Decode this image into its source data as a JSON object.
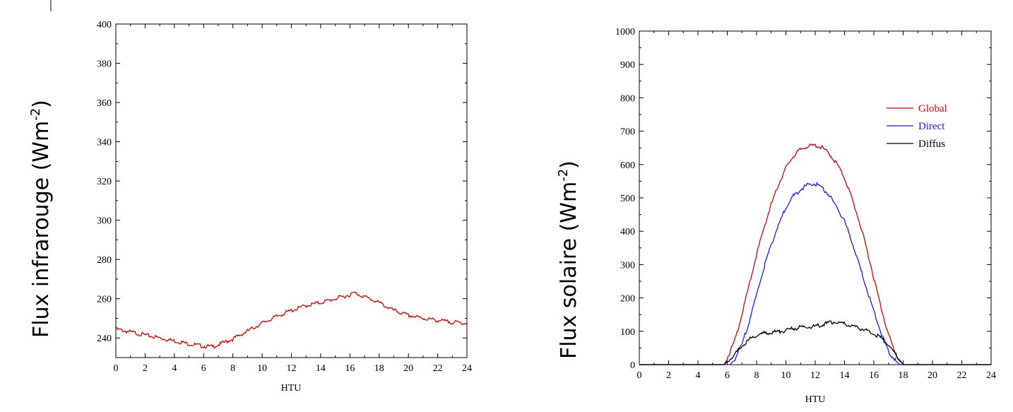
{
  "chart_data": [
    {
      "type": "line",
      "ylabel": "Flux infrarouge (Wm",
      "ylabel_sup": "-2",
      "ylabel_close": ")",
      "xlabel": "HTU",
      "xlim": [
        0,
        24
      ],
      "ylim": [
        230,
        400
      ],
      "xticks": [
        0,
        2,
        4,
        6,
        8,
        10,
        12,
        14,
        16,
        18,
        20,
        22,
        24
      ],
      "yticks": [
        240,
        260,
        280,
        300,
        320,
        340,
        360,
        380,
        400
      ],
      "series": [
        {
          "color": "#e00000",
          "x": [
            0,
            1,
            2,
            3,
            4,
            5,
            6,
            6.6,
            7,
            8,
            9,
            10,
            11,
            12,
            13,
            14,
            15,
            16,
            16.3,
            17,
            18,
            19,
            20,
            21,
            22,
            23,
            24
          ],
          "y": [
            244.5,
            243,
            241.5,
            240,
            238.5,
            237,
            235.8,
            235.5,
            236.5,
            239.5,
            243.5,
            247.5,
            251,
            254,
            256.5,
            258,
            260,
            262,
            263,
            261,
            258,
            254,
            251.5,
            250,
            249,
            248,
            247.5
          ]
        }
      ]
    },
    {
      "type": "line",
      "ylabel": "Flux solaire (Wm",
      "ylabel_sup": "-2",
      "ylabel_close": ")",
      "xlabel": "HTU",
      "xlim": [
        0,
        24
      ],
      "ylim": [
        0,
        1000
      ],
      "xticks": [
        0,
        2,
        4,
        6,
        8,
        10,
        12,
        14,
        16,
        18,
        20,
        22,
        24
      ],
      "yticks": [
        0,
        100,
        200,
        300,
        400,
        500,
        600,
        700,
        800,
        900,
        1000
      ],
      "legend_position": "top-right",
      "series": [
        {
          "name": "Global",
          "color": "#e00000",
          "x": [
            0,
            5.8,
            6,
            6.5,
            7,
            7.5,
            8,
            8.5,
            9,
            9.5,
            10,
            10.5,
            11,
            11.5,
            12,
            12.5,
            13,
            13.5,
            14,
            14.5,
            15,
            15.5,
            16,
            16.5,
            17,
            17.5,
            18,
            24
          ],
          "y": [
            0,
            0,
            20,
            70,
            150,
            240,
            330,
            410,
            480,
            540,
            590,
            625,
            645,
            655,
            657,
            650,
            630,
            600,
            560,
            500,
            430,
            350,
            260,
            170,
            90,
            30,
            0,
            0
          ]
        },
        {
          "name": "Direct",
          "color": "#1a1aff",
          "x": [
            0,
            6.2,
            6.5,
            7,
            7.5,
            8,
            8.5,
            9,
            9.5,
            10,
            10.5,
            11,
            11.5,
            12,
            12.5,
            13,
            13.5,
            14,
            14.5,
            15,
            15.5,
            16,
            16.5,
            17,
            17.5,
            17.8,
            24
          ],
          "y": [
            0,
            0,
            15,
            60,
            130,
            210,
            290,
            360,
            420,
            470,
            505,
            525,
            540,
            542,
            530,
            505,
            470,
            430,
            370,
            300,
            230,
            160,
            95,
            40,
            10,
            0,
            0
          ]
        },
        {
          "name": "Diffus",
          "color": "#000000",
          "x": [
            0,
            5.8,
            6,
            6.5,
            7,
            7.5,
            8,
            8.5,
            9,
            9.5,
            10,
            10.5,
            11,
            11.5,
            12,
            12.5,
            13,
            13.3,
            13.5,
            14,
            14.5,
            15,
            15.5,
            16,
            16.5,
            17,
            17.5,
            18,
            24
          ],
          "y": [
            0,
            0,
            10,
            30,
            55,
            75,
            88,
            94,
            97,
            99,
            102,
            108,
            112,
            113,
            115,
            120,
            126,
            128,
            125,
            122,
            115,
            110,
            102,
            93,
            80,
            60,
            30,
            0,
            0
          ]
        }
      ]
    }
  ]
}
